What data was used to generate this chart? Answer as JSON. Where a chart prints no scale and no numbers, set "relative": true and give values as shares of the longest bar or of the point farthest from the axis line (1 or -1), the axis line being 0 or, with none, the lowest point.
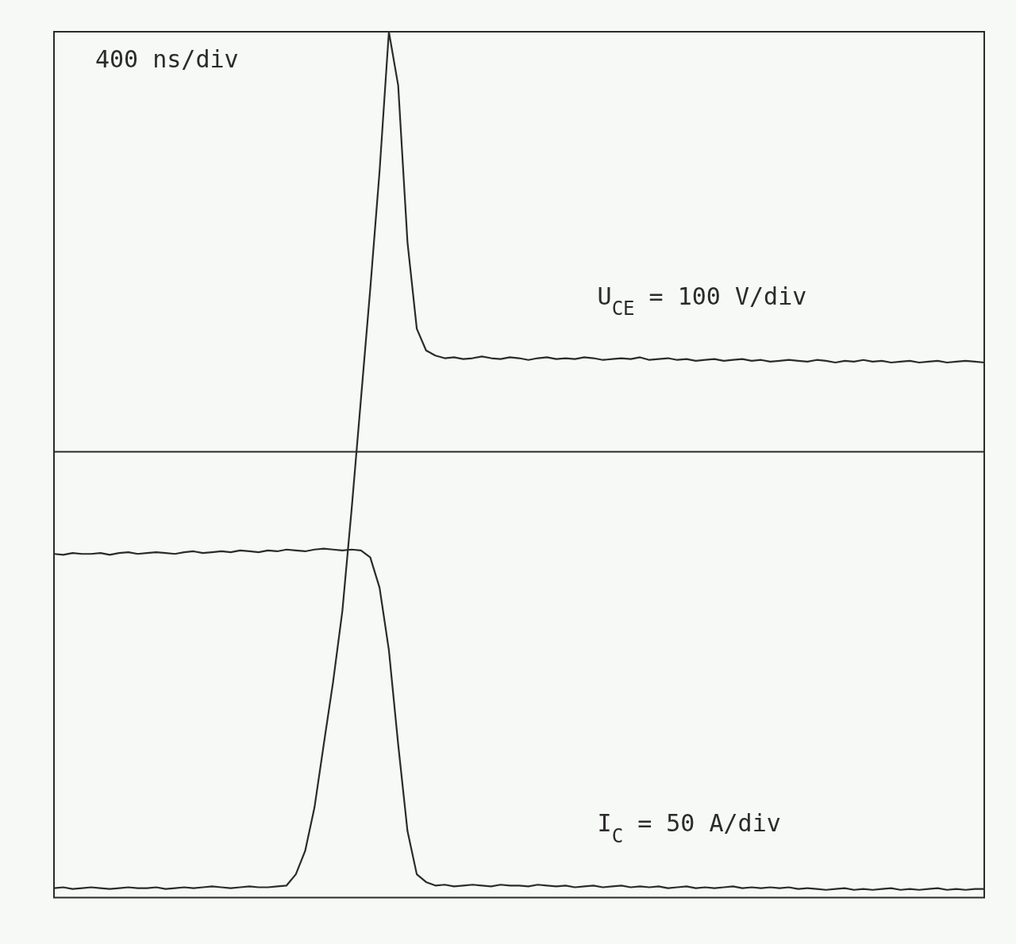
{
  "chart_data": {
    "type": "line",
    "relative": true,
    "grid": false,
    "legend": false,
    "marker": "none",
    "line_style": "solid",
    "annotations": [
      "400 ns/div"
    ],
    "ref_lines": [
      {
        "axis": "y",
        "value": 0.515,
        "color": "#2b2b2b"
      }
    ],
    "categories": [
      null,
      null,
      null,
      null,
      null,
      null,
      null,
      null,
      null,
      null,
      null,
      null,
      null,
      null,
      null,
      null,
      null,
      null,
      null,
      null,
      null,
      null,
      null,
      null,
      null,
      null,
      null,
      null,
      null,
      null,
      null,
      null,
      null,
      null,
      null,
      null,
      null,
      null,
      null,
      null,
      null,
      null,
      null,
      null,
      null,
      null,
      null,
      null,
      null,
      null,
      null,
      null,
      null,
      null,
      null,
      null,
      null,
      null,
      null,
      null,
      null,
      null,
      null,
      null,
      null,
      null,
      null,
      null,
      null,
      null,
      null,
      null,
      null,
      null,
      null,
      null,
      null,
      null,
      null,
      null,
      null,
      null,
      null,
      null,
      null,
      null,
      null,
      null,
      null,
      null,
      null,
      null,
      null,
      null,
      null,
      null,
      null,
      null,
      null,
      null,
      null
    ],
    "series": [
      {
        "name": "U$_{CE}$ = 100 V/div",
        "color": "#2b2b2b",
        "values": [
          0.011,
          0.012,
          0.01,
          0.011,
          0.012,
          0.011,
          0.01,
          0.011,
          0.012,
          0.011,
          0.011,
          0.012,
          0.01,
          0.011,
          0.012,
          0.011,
          0.012,
          0.013,
          0.012,
          0.011,
          0.012,
          0.013,
          0.012,
          0.012,
          0.013,
          0.014,
          0.027,
          0.054,
          0.104,
          0.177,
          0.249,
          0.331,
          0.449,
          0.576,
          0.703,
          0.839,
          1,
          0.938,
          0.757,
          0.657,
          0.632,
          0.626,
          0.623,
          0.624,
          0.622,
          0.623,
          0.625,
          0.623,
          0.622,
          0.624,
          0.623,
          0.621,
          0.623,
          0.624,
          0.622,
          0.623,
          0.622,
          0.624,
          0.623,
          0.621,
          0.622,
          0.623,
          0.622,
          0.624,
          0.621,
          0.622,
          0.623,
          0.621,
          0.622,
          0.62,
          0.621,
          0.622,
          0.62,
          0.621,
          0.622,
          0.62,
          0.621,
          0.619,
          0.62,
          0.621,
          0.62,
          0.619,
          0.621,
          0.62,
          0.618,
          0.62,
          0.619,
          0.621,
          0.619,
          0.62,
          0.618,
          0.619,
          0.62,
          0.618,
          0.619,
          0.62,
          0.618,
          0.619,
          0.62,
          0.619,
          0.618
        ]
      },
      {
        "name": "I$_{C}$ = 50 A/div",
        "color": "#2b2b2b",
        "values": [
          0.397,
          0.396,
          0.398,
          0.397,
          0.397,
          0.398,
          0.396,
          0.398,
          0.399,
          0.397,
          0.398,
          0.399,
          0.398,
          0.397,
          0.399,
          0.4,
          0.398,
          0.399,
          0.4,
          0.399,
          0.401,
          0.4,
          0.399,
          0.401,
          0.4,
          0.402,
          0.401,
          0.4,
          0.402,
          0.403,
          0.402,
          0.401,
          0.402,
          0.401,
          0.393,
          0.358,
          0.286,
          0.177,
          0.077,
          0.027,
          0.018,
          0.014,
          0.015,
          0.013,
          0.014,
          0.015,
          0.014,
          0.013,
          0.015,
          0.014,
          0.014,
          0.013,
          0.015,
          0.014,
          0.013,
          0.014,
          0.012,
          0.013,
          0.014,
          0.012,
          0.013,
          0.014,
          0.012,
          0.013,
          0.012,
          0.013,
          0.011,
          0.012,
          0.013,
          0.011,
          0.012,
          0.011,
          0.012,
          0.013,
          0.011,
          0.012,
          0.011,
          0.012,
          0.011,
          0.012,
          0.01,
          0.011,
          0.01,
          0.009,
          0.01,
          0.011,
          0.009,
          0.01,
          0.009,
          0.01,
          0.011,
          0.009,
          0.01,
          0.009,
          0.01,
          0.011,
          0.009,
          0.01,
          0.009,
          0.01,
          0.01
        ]
      }
    ]
  }
}
